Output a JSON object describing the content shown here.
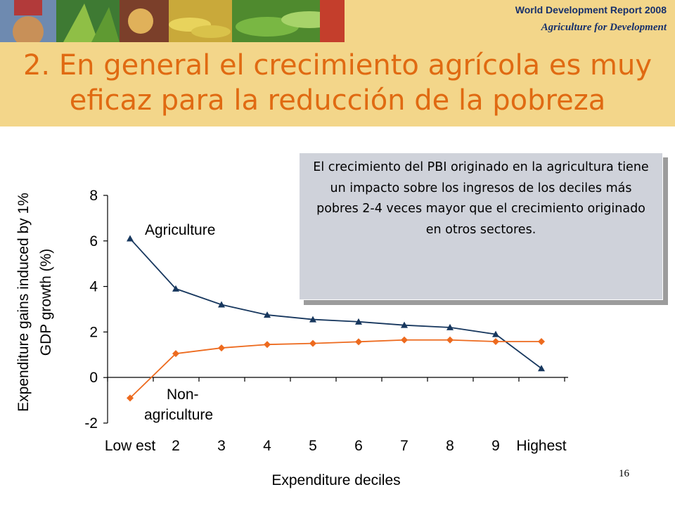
{
  "header": {
    "report_title": "World Development Report 2008",
    "report_subtitle": "Agriculture for Development",
    "band_color": "#f3d68a",
    "text_color": "#17306b"
  },
  "slide": {
    "title_line1": "2. En general el crecimiento agrícola es muy",
    "title_line2": "eficaz para la reducción de la pobreza",
    "title_color": "#e06a12",
    "page_number": "16"
  },
  "callout": {
    "text": "El crecimiento del PBI originado en la agricultura tiene un impacto sobre los ingresos de los deciles más pobres 2-4 veces mayor que el crecimiento originado en otros sectores."
  },
  "chart_data": {
    "type": "line",
    "categories": [
      "Low est",
      "2",
      "3",
      "4",
      "5",
      "6",
      "7",
      "8",
      "9",
      "Highest"
    ],
    "xlabel": "Expenditure deciles",
    "ylabel_line1": "Expenditure gains induced by 1%",
    "ylabel_line2": "GDP growth (%)",
    "ylim": [
      -2,
      8
    ],
    "yticks": [
      -2,
      0,
      2,
      4,
      6,
      8
    ],
    "grid": false,
    "series": [
      {
        "name": "Agriculture",
        "marker": "triangle",
        "color": "#17375e",
        "values": [
          6.1,
          3.9,
          3.2,
          2.75,
          2.55,
          2.45,
          2.3,
          2.2,
          1.9,
          0.4
        ]
      },
      {
        "name": "Non-agriculture",
        "label_line1": "Non-",
        "label_line2": "agriculture",
        "marker": "diamond",
        "color": "#ed6a1e",
        "values": [
          -0.9,
          1.05,
          1.3,
          1.45,
          1.5,
          1.57,
          1.65,
          1.65,
          1.58,
          1.58
        ]
      }
    ]
  }
}
